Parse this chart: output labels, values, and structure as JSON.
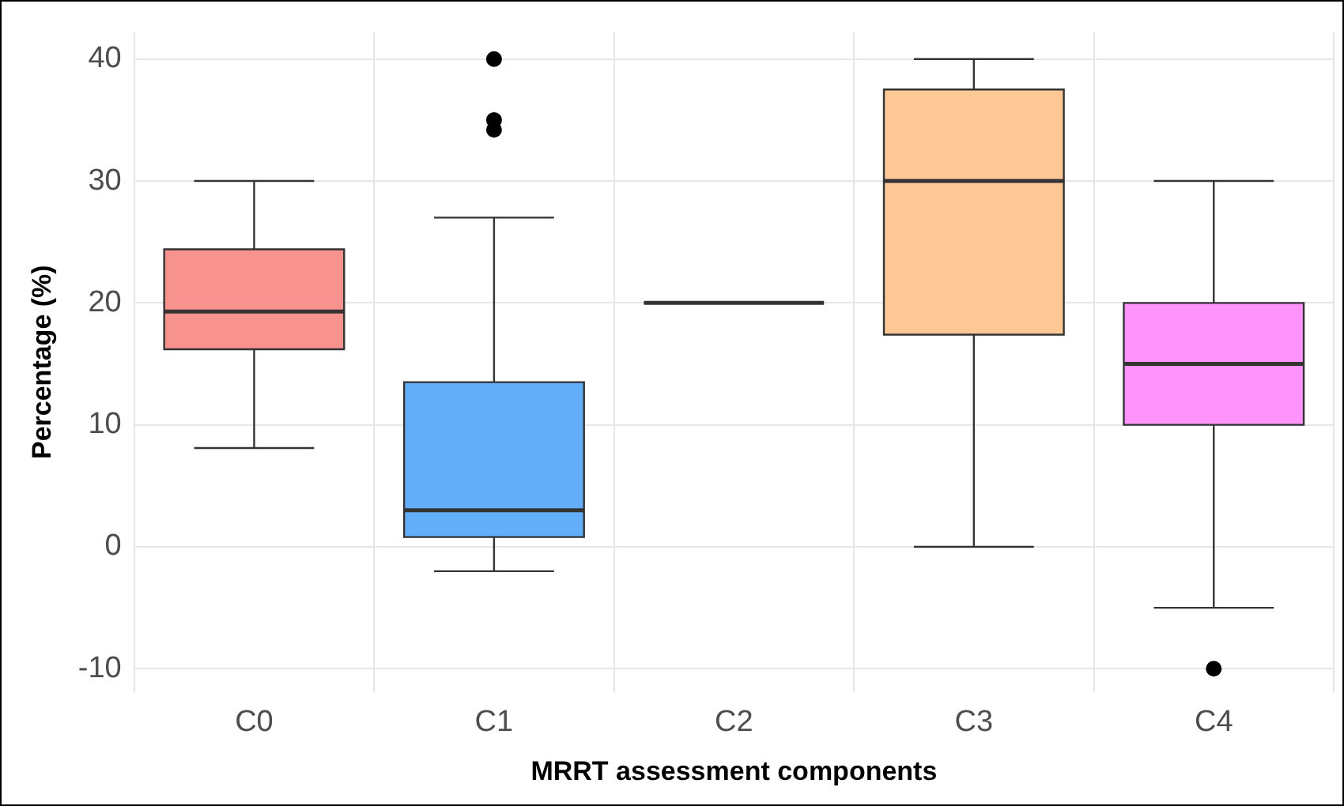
{
  "chart_data": {
    "type": "box",
    "xlabel": "MRRT assessment components",
    "ylabel": "Percentage (%)",
    "categories": [
      "C0",
      "C1",
      "C2",
      "C3",
      "C4"
    ],
    "boxes": [
      {
        "low": 8.1,
        "q1": 16.2,
        "median": 19.3,
        "q3": 24.4,
        "high": 30
      },
      {
        "low": -2,
        "q1": 0.8,
        "median": 3,
        "q3": 13.5,
        "high": 27,
        "outliers": [
          40,
          35,
          34.2
        ]
      },
      {
        "low": 20,
        "q1": 20,
        "median": 20,
        "q3": 20,
        "high": 20
      },
      {
        "low": 0,
        "q1": 17.4,
        "median": 30,
        "q3": 37.5,
        "high": 40
      },
      {
        "low": -5,
        "q1": 10,
        "median": 15,
        "q3": 20,
        "high": 30,
        "outliers": [
          -10
        ]
      }
    ],
    "colors": [
      "#f8928f",
      "#63aef9",
      "#333333",
      "#fdc896",
      "#fd93fb"
    ],
    "ylim": [
      -11.9,
      42.2
    ],
    "yticks": [
      -10,
      0,
      10,
      20,
      30,
      40
    ],
    "grid": true,
    "legend": false
  }
}
